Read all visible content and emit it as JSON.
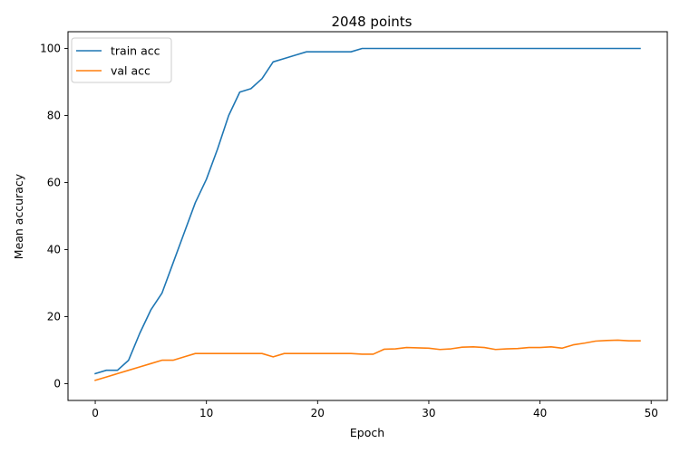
{
  "chart_data": {
    "type": "line",
    "title": "2048 points",
    "xlabel": "Epoch",
    "ylabel": "Mean accuracy",
    "xlim": [
      -2.45,
      51.45
    ],
    "ylim": [
      -5,
      105
    ],
    "xticks": [
      0,
      10,
      20,
      30,
      40,
      50
    ],
    "yticks": [
      0,
      20,
      40,
      60,
      80,
      100
    ],
    "grid": false,
    "legend_position": "top-left",
    "x": [
      0,
      1,
      2,
      3,
      4,
      5,
      6,
      7,
      8,
      9,
      10,
      11,
      12,
      13,
      14,
      15,
      16,
      17,
      18,
      19,
      20,
      21,
      22,
      23,
      24,
      25,
      26,
      27,
      28,
      29,
      30,
      31,
      32,
      33,
      34,
      35,
      36,
      37,
      38,
      39,
      40,
      41,
      42,
      43,
      44,
      45,
      46,
      47,
      48,
      49
    ],
    "series": [
      {
        "name": "train acc",
        "color": "#1f77b4",
        "values": [
          3,
          4,
          4,
          7,
          15,
          22,
          27,
          36,
          45,
          54,
          61,
          70,
          80,
          87,
          88,
          91,
          96,
          97,
          98,
          99,
          99,
          99,
          99,
          99,
          100,
          100,
          100,
          100,
          100,
          100,
          100,
          100,
          100,
          100,
          100,
          100,
          100,
          100,
          100,
          100,
          100,
          100,
          100,
          100,
          100,
          100,
          100,
          100,
          100,
          100
        ]
      },
      {
        "name": "val acc",
        "color": "#ff7f0e",
        "values": [
          1,
          2,
          3,
          4,
          5,
          6,
          7,
          7,
          8,
          9,
          9,
          9,
          9,
          9,
          9,
          9,
          8,
          9,
          9,
          9,
          9,
          9,
          9,
          9,
          8.8,
          8.8,
          10.3,
          10.4,
          10.8,
          10.7,
          10.6,
          10.2,
          10.4,
          10.9,
          11.0,
          10.8,
          10.2,
          10.4,
          10.5,
          10.8,
          10.8,
          11.0,
          10.6,
          11.6,
          12.1,
          12.7,
          12.9,
          13.0,
          12.8,
          12.8
        ]
      }
    ]
  }
}
